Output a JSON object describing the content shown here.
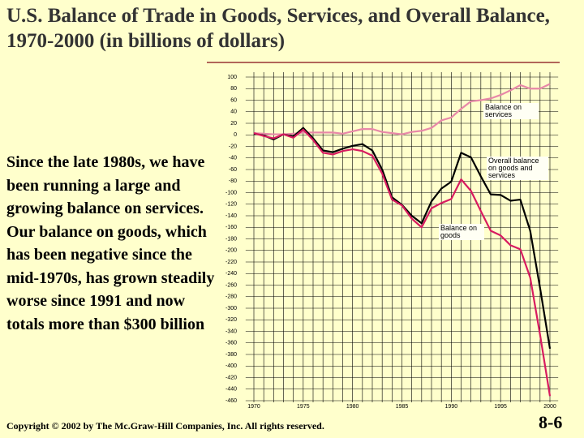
{
  "title": "U.S. Balance of Trade in Goods, Services, and Overall Balance, 1970-2000 (in billions of dollars)",
  "text": "Since the late 1980s, we have been running a large and growing balance on services.  Our balance on goods, which has been negative since the mid-1970s, has grown steadily worse since 1991 and now totals more than $300 billion",
  "footer": "Copyright © 2002 by The Mc.Graw-Hill Companies, Inc.  All rights reserved.",
  "slide_number": "8-6",
  "chart_data": {
    "type": "line",
    "x": [
      1970,
      1971,
      1972,
      1973,
      1974,
      1975,
      1976,
      1977,
      1978,
      1979,
      1980,
      1981,
      1982,
      1983,
      1984,
      1985,
      1986,
      1987,
      1988,
      1989,
      1990,
      1991,
      1992,
      1993,
      1994,
      1995,
      1996,
      1997,
      1998,
      1999,
      2000
    ],
    "series": [
      {
        "name": "Balance on services",
        "color": "#e888a8",
        "values": [
          3,
          2,
          1,
          1,
          2,
          4,
          4,
          4,
          4,
          2,
          6,
          10,
          10,
          5,
          3,
          1,
          5,
          7,
          12,
          25,
          30,
          45,
          58,
          60,
          63,
          69,
          77,
          86,
          80,
          80,
          88
        ]
      },
      {
        "name": "Overall balance on goods and services",
        "color": "#000000",
        "values": [
          2,
          -1,
          -8,
          1,
          -3,
          12,
          -6,
          -27,
          -30,
          -24,
          -19,
          -16,
          -27,
          -60,
          -108,
          -121,
          -140,
          -153,
          -115,
          -93,
          -81,
          -31,
          -39,
          -72,
          -103,
          -104,
          -114,
          -112,
          -166,
          -265,
          -370
        ]
      },
      {
        "name": "Balance on goods",
        "color": "#d81b60",
        "values": [
          3,
          -2,
          -6,
          1,
          -5,
          9,
          -9,
          -31,
          -34,
          -28,
          -25,
          -28,
          -36,
          -67,
          -112,
          -122,
          -145,
          -160,
          -127,
          -118,
          -111,
          -77,
          -97,
          -132,
          -166,
          -174,
          -191,
          -198,
          -247,
          -346,
          -452
        ]
      }
    ],
    "xlim": [
      1969,
      2001
    ],
    "xticks": [
      1970,
      1975,
      1980,
      1985,
      1990,
      1995,
      2000
    ],
    "ylim": [
      -460,
      100
    ],
    "yticks": [
      100,
      80,
      60,
      40,
      20,
      0,
      -20,
      -40,
      -60,
      -80,
      -100,
      -120,
      -140,
      -160,
      -180,
      -200,
      -220,
      -240,
      -260,
      -280,
      -300,
      -320,
      -340,
      -360,
      -380,
      -400,
      -420,
      -440,
      -460
    ],
    "grid": true
  }
}
